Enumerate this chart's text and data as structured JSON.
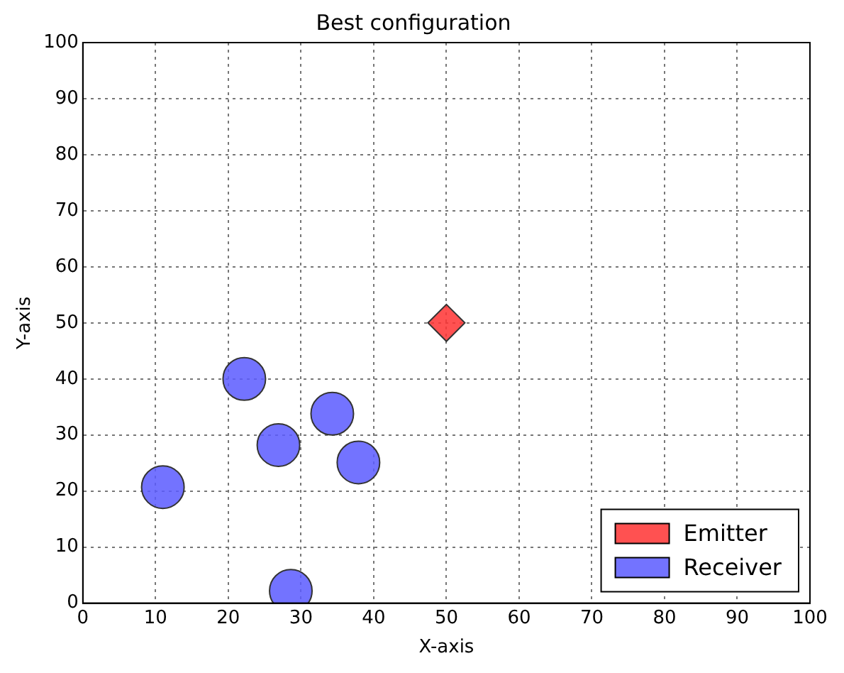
{
  "chart_data": {
    "type": "scatter",
    "title": "Best configuration",
    "xlabel": "X-axis",
    "ylabel": "Y-axis",
    "series": [
      {
        "name": "Emitter",
        "color": "#ff3333",
        "marker": "diamond",
        "x": [
          50
        ],
        "values": [
          50
        ]
      },
      {
        "name": "Receiver",
        "color": "#5b5bff",
        "marker": "circle",
        "x": [
          11,
          22.2,
          26.9,
          34.3,
          37.9,
          28.6
        ],
        "values": [
          20.7,
          40,
          28.2,
          33.8,
          25.1,
          2.2
        ]
      }
    ],
    "xlim": [
      0,
      100
    ],
    "ylim": [
      0,
      100
    ],
    "xticks": [
      0,
      10,
      20,
      30,
      40,
      50,
      60,
      70,
      80,
      90,
      100
    ],
    "yticks": [
      0,
      10,
      20,
      30,
      40,
      50,
      60,
      70,
      80,
      90,
      100
    ],
    "grid": true,
    "legend": "bottom right"
  }
}
